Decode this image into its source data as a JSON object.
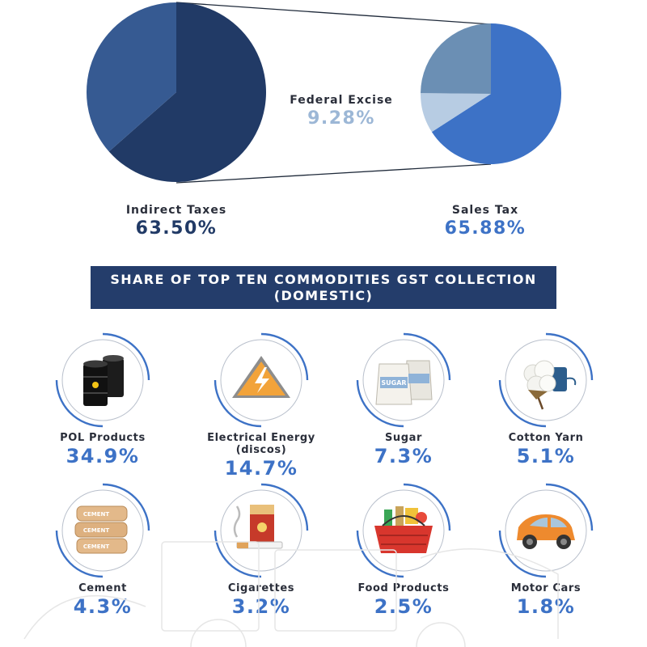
{
  "chart_data": [
    {
      "type": "pie",
      "title": "",
      "slices": [
        {
          "label": "Indirect Taxes",
          "value": 63.5,
          "color": "#213a66"
        },
        {
          "label": "",
          "value": 36.5,
          "color": "#365a92"
        }
      ],
      "labels": [
        {
          "name": "Indirect Taxes",
          "value_text": "63.50%"
        }
      ]
    },
    {
      "type": "pie",
      "title": "",
      "slices": [
        {
          "label": "Sales Tax",
          "value": 65.88,
          "color": "#3d72c6"
        },
        {
          "label": "Federal Excise",
          "value": 9.28,
          "color": "#b7cce3"
        },
        {
          "label": "",
          "value": 24.84,
          "color": "#6b8fb4"
        }
      ],
      "labels": [
        {
          "name": "Sales Tax",
          "value_text": "65.88%"
        },
        {
          "name": "Federal Excise",
          "value_text": "9.28%"
        }
      ]
    },
    {
      "type": "table",
      "title": "SHARE OF TOP TEN COMMODITIES GST COLLECTION (DOMESTIC)",
      "categories": [
        "POL Products",
        "Electrical Energy (discos)",
        "Sugar",
        "Cotton Yarn",
        "Cement",
        "Cigarettes",
        "Food Products",
        "Motor Cars"
      ],
      "values": [
        34.9,
        14.7,
        7.3,
        5.1,
        4.3,
        3.2,
        2.5,
        1.8
      ]
    }
  ],
  "labels": {
    "indirect_name": "Indirect Taxes",
    "indirect_pct": "63.50%",
    "federal_name": "Federal Excise",
    "federal_pct": "9.28%",
    "sales_name": "Sales Tax",
    "sales_pct": "65.88%"
  },
  "banner": {
    "line1": "SHARE OF TOP TEN COMMODITIES GST COLLECTION",
    "line2": "(DOMESTIC)"
  },
  "commodities": [
    {
      "name": "POL Products",
      "pct": "34.9%",
      "icon": "oil-barrels-icon"
    },
    {
      "name": "Electrical Energy (discos)",
      "pct": "14.7%",
      "icon": "electricity-warning-icon"
    },
    {
      "name": "Sugar",
      "pct": "7.3%",
      "icon": "sugar-sacks-icon",
      "icon_text": "SUGAR"
    },
    {
      "name": "Cotton Yarn",
      "pct": "5.1%",
      "icon": "cotton-yarn-icon"
    },
    {
      "name": "Cement",
      "pct": "4.3%",
      "icon": "cement-bags-icon",
      "icon_text": "CEMENT"
    },
    {
      "name": "Cigarettes",
      "pct": "3.2%",
      "icon": "cigarettes-icon"
    },
    {
      "name": "Food Products",
      "pct": "2.5%",
      "icon": "food-basket-icon"
    },
    {
      "name": "Motor Cars",
      "pct": "1.8%",
      "icon": "motor-car-icon"
    }
  ],
  "colors": {
    "navy": "#213a66",
    "accent_blue": "#3d72c6",
    "light_blue": "#b7cce3",
    "banner": "#243d6b"
  }
}
